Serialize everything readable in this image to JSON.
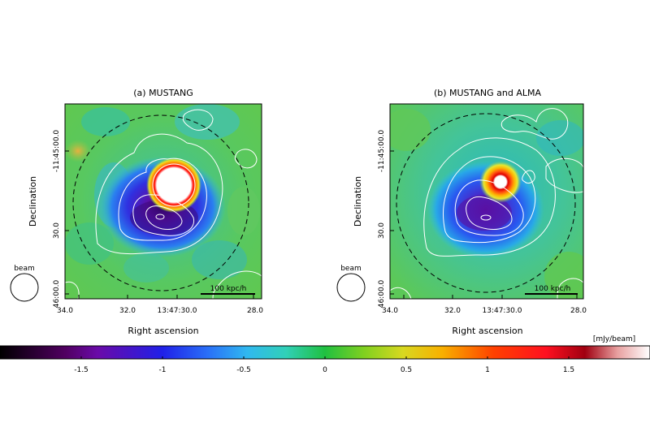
{
  "colors": {
    "map_background": "#5cc858",
    "negative_deep": "#4a0a8a",
    "positive_core": "#ff2020",
    "contour": "#ffffff",
    "circle": "#000000"
  },
  "chart_data": [
    {
      "type": "heatmap",
      "title": "(a) MUSTANG",
      "xlabel": "Right ascension",
      "ylabel": "Declination",
      "x_ticks": [
        "34.0",
        "32.0",
        "13:47:30.0",
        "28.0"
      ],
      "y_ticks": [
        "-11:45:00.0",
        "30.0",
        "46:00.0"
      ],
      "beam_label": "beam",
      "scalebar_label": "100 kpc/h",
      "central_source": "saturated (white) compact positive source"
    },
    {
      "type": "heatmap",
      "title": "(b) MUSTANG and ALMA",
      "xlabel": "Right ascension",
      "ylabel": "Declination",
      "x_ticks": [
        "34.0",
        "32.0",
        "13:47:30.0",
        "28.0"
      ],
      "y_ticks": [
        "-11:45:00.0",
        "30.0",
        "46:00.0"
      ],
      "beam_label": "beam",
      "scalebar_label": "100 kpc/h",
      "central_source": "compact positive source with red/yellow rings"
    }
  ],
  "colorbar": {
    "unit": "[mJy/beam]",
    "range": [
      -2,
      2
    ],
    "ticks": [
      "-1.5",
      "-1",
      "-0.5",
      "0",
      "0.5",
      "1",
      "1.5"
    ],
    "tick_values": [
      -1.5,
      -1,
      -0.5,
      0,
      0.5,
      1,
      1.5
    ]
  }
}
